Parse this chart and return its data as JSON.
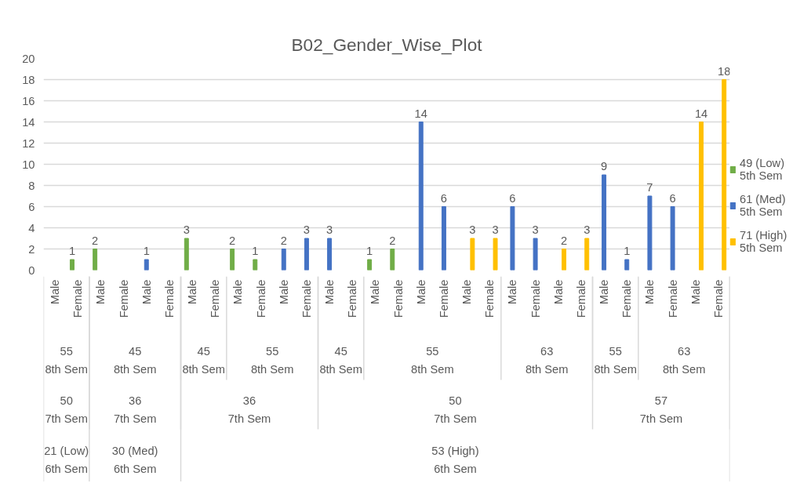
{
  "chart_data": {
    "type": "bar",
    "title": "B02_Gender_Wise_Plot",
    "categories": [
      "Male",
      "Female",
      "Male",
      "Female",
      "Male",
      "Female",
      "Male",
      "Female",
      "Male",
      "Female",
      "Male",
      "Female",
      "Male",
      "Female",
      "Male",
      "Female",
      "Male",
      "Female",
      "Male",
      "Female",
      "Male",
      "Female",
      "Male",
      "Female",
      "Male",
      "Female",
      "Male",
      "Female",
      "Male",
      "Female"
    ],
    "series": [
      {
        "name": "49 (Low)\n5th Sem",
        "color": "#70ad47",
        "values": [
          null,
          1,
          2,
          null,
          null,
          null,
          3,
          null,
          2,
          1,
          null,
          null,
          null,
          null,
          1,
          2,
          null,
          null,
          null,
          null,
          null,
          null,
          null,
          null,
          null,
          null,
          null,
          null,
          null,
          null
        ]
      },
      {
        "name": "61 (Med)\n5th Sem",
        "color": "#4472c4",
        "values": [
          null,
          null,
          null,
          null,
          1,
          null,
          null,
          null,
          null,
          null,
          2,
          3,
          3,
          null,
          null,
          null,
          14,
          6,
          null,
          null,
          6,
          3,
          null,
          null,
          9,
          1,
          7,
          6,
          null,
          null
        ]
      },
      {
        "name": "71 (High)\n5th Sem",
        "color": "#ffc000",
        "values": [
          null,
          null,
          null,
          null,
          null,
          null,
          null,
          null,
          null,
          null,
          null,
          null,
          null,
          null,
          null,
          null,
          null,
          null,
          3,
          3,
          null,
          null,
          2,
          3,
          null,
          null,
          null,
          null,
          14,
          18
        ]
      }
    ],
    "ylim": [
      0,
      20
    ],
    "yticks": [
      0,
      2,
      4,
      6,
      8,
      10,
      12,
      14,
      16,
      18,
      20
    ],
    "grid": "y",
    "legend": "right",
    "data_labels": true,
    "annotations": [
      "55\n8th Sem",
      "45\n8th Sem",
      "45\n8th Sem",
      "55\n8th Sem",
      "45\n8th Sem",
      "55\n8th Sem",
      "63\n8th Sem",
      "55\n8th Sem",
      "63\n8th Sem",
      "50\n7th Sem",
      "36\n7th Sem",
      "36\n7th Sem",
      "50\n7th Sem",
      "57\n7th Sem",
      "21 (Low)\n6th Sem",
      "30 (Med)\n6th Sem",
      "53 (High)\n6th Sem"
    ]
  }
}
